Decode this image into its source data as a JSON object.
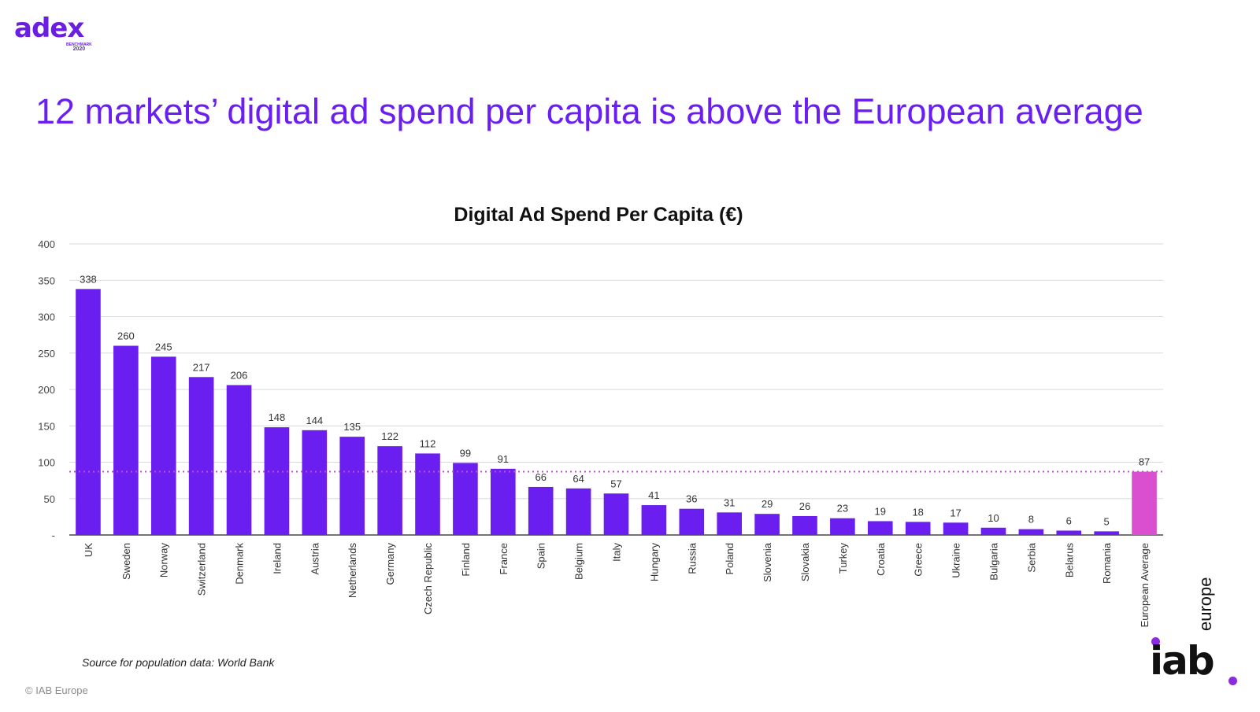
{
  "brand": {
    "logo_text": "adex",
    "logo_sub": "BENCHMARK",
    "logo_year": "2020",
    "iab_text": "iab",
    "iab_suffix": "europe"
  },
  "slide": {
    "title": "12 markets’ digital ad spend per capita is above the European average",
    "source": "Source for population data: World Bank",
    "copyright": "© IAB Europe"
  },
  "colors": {
    "bar": "#6a1ff0",
    "average_bar": "#d94fd0",
    "average_line": "#c24fd0",
    "title": "#6a1ff0"
  },
  "chart_data": {
    "type": "bar",
    "title": "Digital Ad Spend Per Capita (€)",
    "categories": [
      "UK",
      "Sweden",
      "Norway",
      "Switzerland",
      "Denmark",
      "Ireland",
      "Austria",
      "Netherlands",
      "Germany",
      "Czech Republic",
      "Finland",
      "France",
      "Spain",
      "Belgium",
      "Italy",
      "Hungary",
      "Russia",
      "Poland",
      "Slovenia",
      "Slovakia",
      "Turkey",
      "Croatia",
      "Greece",
      "Ukraine",
      "Bulgaria",
      "Serbia",
      "Belarus",
      "Romania",
      "European Average"
    ],
    "values": [
      338,
      260,
      245,
      217,
      206,
      148,
      144,
      135,
      122,
      112,
      99,
      91,
      66,
      64,
      57,
      41,
      36,
      31,
      29,
      26,
      23,
      19,
      18,
      17,
      10,
      8,
      6,
      5,
      87
    ],
    "highlight_category": "European Average",
    "reference_line": 87,
    "ylim": [
      0,
      400
    ],
    "yticks": [
      0,
      50,
      100,
      150,
      200,
      250,
      300,
      350,
      400
    ],
    "ytick_labels": [
      "-",
      "50",
      "100",
      "150",
      "200",
      "250",
      "300",
      "350",
      "400"
    ],
    "grid": true,
    "legend": "none"
  }
}
